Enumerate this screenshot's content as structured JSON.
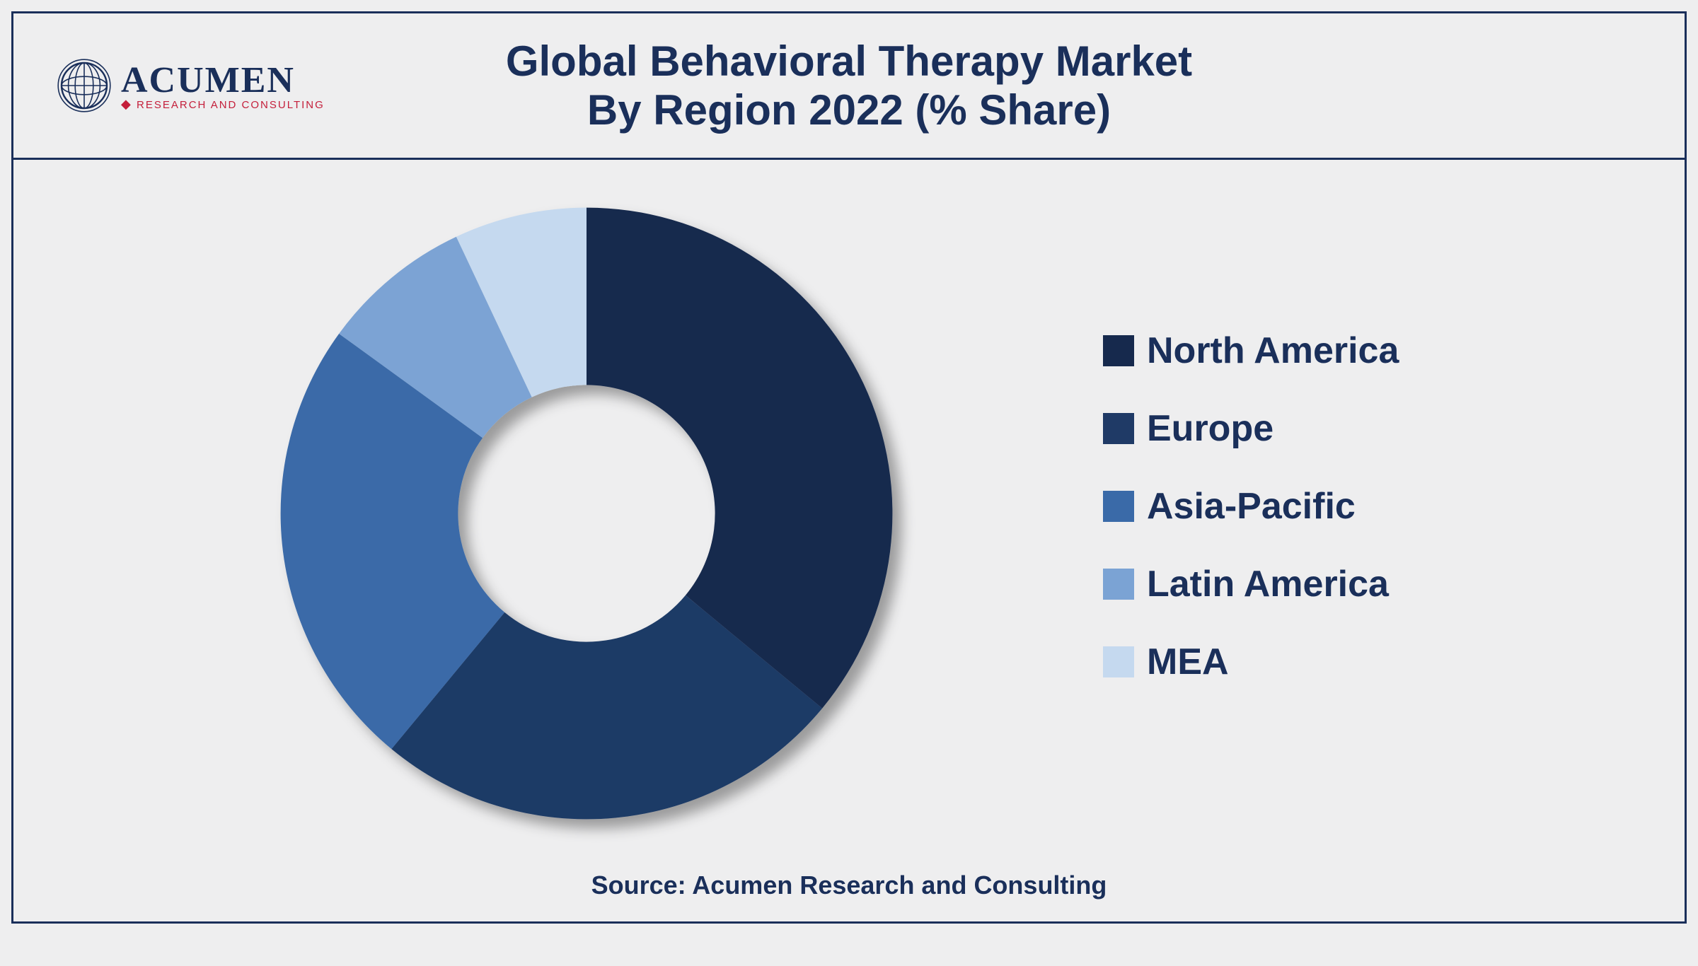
{
  "logo": {
    "main": "ACUMEN",
    "sub": "RESEARCH AND CONSULTING",
    "globe_stroke": "#1a2f5a",
    "diamond_color": "#c41e3a"
  },
  "title": {
    "line1": "Global Behavioral Therapy Market",
    "line2": "By Region 2022 (% Share)",
    "color": "#1a2f5a",
    "fontsize": 60
  },
  "chart": {
    "type": "donut",
    "inner_radius_ratio": 0.42,
    "outer_radius": 460,
    "start_angle_deg": 0,
    "shadow_color": "rgba(0,0,0,0.35)",
    "shadow_blur": 18,
    "shadow_dx": 14,
    "shadow_dy": 14,
    "background_color": "#eeeeef",
    "slices": [
      {
        "label": "North America",
        "value": 36,
        "color": "#16294d"
      },
      {
        "label": "Europe",
        "value": 25,
        "color": "#1f3a66"
      },
      {
        "label": "Asia-Pacific",
        "value": 24,
        "color": "#3a6aa8"
      },
      {
        "label": "Latin America",
        "value": 8,
        "color": "#7ba3d4"
      },
      {
        "label": "MEA",
        "value": 7,
        "color": "#c5d9ef"
      }
    ]
  },
  "legend": {
    "label_color": "#1a2f5a",
    "label_fontsize": 52,
    "swatch_size": 44,
    "items": [
      {
        "label": "North America",
        "color": "#16294d"
      },
      {
        "label": "Europe",
        "color": "#1f3a66"
      },
      {
        "label": "Asia-Pacific",
        "color": "#3a6aa8"
      },
      {
        "label": "Latin America",
        "color": "#7ba3d4"
      },
      {
        "label": "MEA",
        "color": "#c5d9ef"
      }
    ]
  },
  "source": {
    "text": "Source: Acumen Research and Consulting",
    "color": "#1a2f5a",
    "fontsize": 36
  },
  "frame": {
    "border_color": "#1a2f5a",
    "border_width": 3,
    "background_color": "#eeeeef"
  }
}
